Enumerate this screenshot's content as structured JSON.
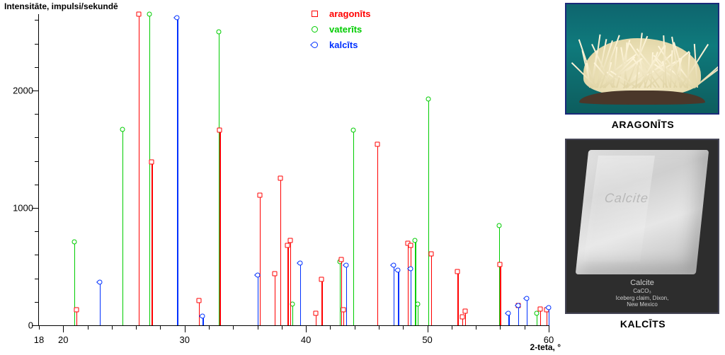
{
  "chart": {
    "type": "stem",
    "y_axis_title": "Intensitāte, impulsi/sekundē",
    "x_axis_title_html": "2-teta, °",
    "xlim": [
      18,
      60
    ],
    "ylim": [
      0,
      2650
    ],
    "x_major_ticks": [
      20,
      30,
      40,
      50,
      60
    ],
    "x_minor_step": 2,
    "y_major_ticks": [
      0,
      1000,
      2000
    ],
    "y_minor_step": 200,
    "background_color": "#ffffff",
    "axis_color": "#000000",
    "tick_fontsize": 13,
    "title_fontsize": 12,
    "marker_size": 7,
    "line_width": 1.2,
    "series": {
      "aragonits": {
        "label": "aragonīts",
        "color": "#ff0000",
        "marker": "square",
        "x": [
          21.1,
          26.2,
          27.3,
          31.2,
          32.9,
          36.2,
          37.4,
          37.9,
          38.5,
          38.7,
          40.8,
          41.3,
          42.9,
          43.1,
          45.9,
          48.4,
          48.6,
          50.3,
          52.5,
          52.9,
          53.1,
          56.0,
          57.5,
          59.3,
          59.8
        ],
        "y": [
          130,
          2650,
          1390,
          210,
          1660,
          1110,
          440,
          1250,
          680,
          720,
          100,
          390,
          560,
          130,
          1540,
          700,
          680,
          610,
          460,
          70,
          120,
          520,
          170,
          140,
          130
        ]
      },
      "vaterits": {
        "label": "vaterīts",
        "color": "#00cc00",
        "marker": "circle",
        "x": [
          20.9,
          24.9,
          27.1,
          32.8,
          38.9,
          40.8,
          42.8,
          43.9,
          49.0,
          49.2,
          50.1,
          55.9,
          59.0
        ],
        "y": [
          710,
          1670,
          2650,
          2500,
          180,
          100,
          540,
          1660,
          720,
          180,
          1930,
          850,
          100
        ]
      },
      "kalcits": {
        "label": "kalcīts",
        "color": "#0030ff",
        "marker": "diamond",
        "x": [
          23.0,
          29.4,
          31.5,
          36.0,
          39.5,
          43.3,
          47.2,
          47.6,
          48.6,
          56.7,
          57.5,
          58.2,
          60.0
        ],
        "y": [
          370,
          2620,
          80,
          430,
          530,
          510,
          510,
          470,
          480,
          100,
          170,
          230,
          150
        ]
      }
    },
    "legend_order": [
      "aragonits",
      "vaterits",
      "kalcits"
    ]
  },
  "photos": {
    "aragon": {
      "caption": "ARAGONĪTS",
      "border_color": "#1a2a7a"
    },
    "kalcit": {
      "caption": "KALCĪTS",
      "ghost_text": "Calcite",
      "inner_caption": "Calcite\nCaCO₃\nIceberg claim, Dixon,\nNew Mexico",
      "border_color": "#444455"
    }
  }
}
